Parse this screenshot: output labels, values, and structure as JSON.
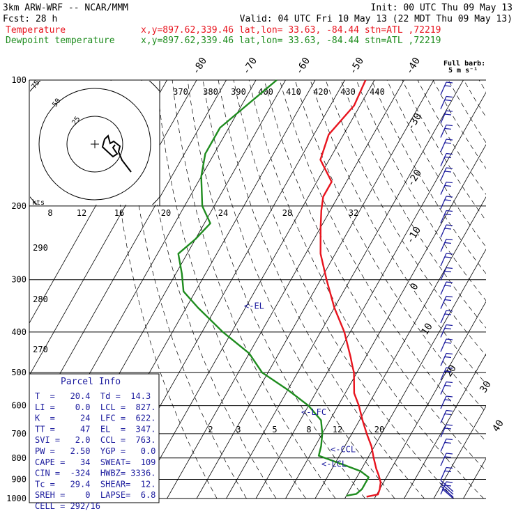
{
  "header": {
    "title_left": "3km ARW-WRF -- NCAR/MMM",
    "init": "Init: 00 UTC Thu 09 May 13",
    "fcst": "Fcst:     28 h",
    "valid": "Valid: 04 UTC Fri 10 May 13 (22 MDT Thu 09 May 13)",
    "temperature_label": "Temperature",
    "dewpoint_label": "Dewpoint temperature",
    "location_info": "x,y=897.62,339.46   lat,lon= 33.63, -84.44   stn=ATL ,72219"
  },
  "colors": {
    "temperature": "#e8141e",
    "dewpoint": "#1e8c1e",
    "text_blue": "#1b1b9e",
    "grid": "#000000"
  },
  "legend": {
    "barb_title": "Full barb:",
    "barb_units": "5 m s⁻¹"
  },
  "hodograph": {
    "units_label": "kts",
    "ring_labels": [
      "75",
      "50",
      "25"
    ]
  },
  "chart_data": {
    "type": "line",
    "plot_type": "skew-T log-p",
    "y_axis": "pressure (hPa), log scale, inverted",
    "pressure_ticks": [
      100,
      200,
      300,
      400,
      500,
      600,
      700,
      800,
      900,
      1000
    ],
    "isotherm_labels": [
      "-80",
      "-70",
      "-60",
      "-50",
      "-40",
      "-30",
      "-20",
      "-10",
      "0",
      "10",
      "20",
      "30",
      "40"
    ],
    "theta_labels_top": [
      "370",
      "380",
      "390",
      "400",
      "410",
      "420",
      "430",
      "440"
    ],
    "theta_labels_left": [
      "290",
      "280",
      "270"
    ],
    "mixing_ratio_labels": [
      "2",
      "3",
      "5",
      "8",
      "12",
      "20"
    ],
    "hodo_speed_labels": [
      "8",
      "12",
      "16",
      "20",
      "24",
      "28",
      "32"
    ],
    "series": [
      {
        "name": "Temperature",
        "points": [
          [
            100,
            -63
          ],
          [
            115,
            -62
          ],
          [
            135,
            -65
          ],
          [
            155,
            -63
          ],
          [
            175,
            -55
          ],
          [
            190,
            -55
          ],
          [
            205,
            -53
          ],
          [
            225,
            -50
          ],
          [
            260,
            -45
          ],
          [
            300,
            -38
          ],
          [
            350,
            -30
          ],
          [
            400,
            -22
          ],
          [
            460,
            -15
          ],
          [
            480,
            -13
          ],
          [
            500,
            -11
          ],
          [
            560,
            -7
          ],
          [
            600,
            -3
          ],
          [
            650,
            1
          ],
          [
            700,
            5
          ],
          [
            750,
            9
          ],
          [
            800,
            12
          ],
          [
            850,
            15
          ],
          [
            880,
            17
          ],
          [
            915,
            19
          ],
          [
            950,
            20
          ],
          [
            978,
            20.4
          ],
          [
            990,
            17
          ]
        ]
      },
      {
        "name": "Dewpoint temperature",
        "points": [
          [
            100,
            -93
          ],
          [
            130,
            -103
          ],
          [
            150,
            -103
          ],
          [
            170,
            -100
          ],
          [
            200,
            -94
          ],
          [
            220,
            -88
          ],
          [
            240,
            -90
          ],
          [
            260,
            -93
          ],
          [
            290,
            -88
          ],
          [
            320,
            -84
          ],
          [
            350,
            -76
          ],
          [
            400,
            -63
          ],
          [
            450,
            -50
          ],
          [
            500,
            -42
          ],
          [
            550,
            -30
          ],
          [
            600,
            -20
          ],
          [
            650,
            -13
          ],
          [
            700,
            -10
          ],
          [
            750,
            -8
          ],
          [
            790,
            -7
          ],
          [
            830,
            3
          ],
          [
            860,
            10
          ],
          [
            890,
            14
          ],
          [
            920,
            14
          ],
          [
            950,
            14
          ],
          [
            975,
            13
          ],
          [
            985,
            10
          ]
        ]
      }
    ],
    "level_markers": [
      {
        "label": "<-EL",
        "pressure": 347
      },
      {
        "label": "<-LFC",
        "pressure": 622
      },
      {
        "label": "<-CCL",
        "pressure": 763
      },
      {
        "label": "<-LCL",
        "pressure": 827
      }
    ]
  },
  "parcel": {
    "title": "Parcel Info",
    "rows": [
      "T  =   20.4  Td =  14.3",
      "LI =    0.0  LCL =  827.",
      "K  =     24  LFC =  622.",
      "TT =     47  EL  =  347.",
      "SVI =   2.0  CCL =  763.",
      "PW =   2.50  YGP =   0.0",
      "CAPE =   34  SWEAT=  109",
      "CIN =  -324  HWBZ= 3336.",
      "Tc =   29.4  SHEAR=  12.",
      "SREH =    0  LAPSE=  6.8",
      "CELL = 292/16"
    ]
  }
}
